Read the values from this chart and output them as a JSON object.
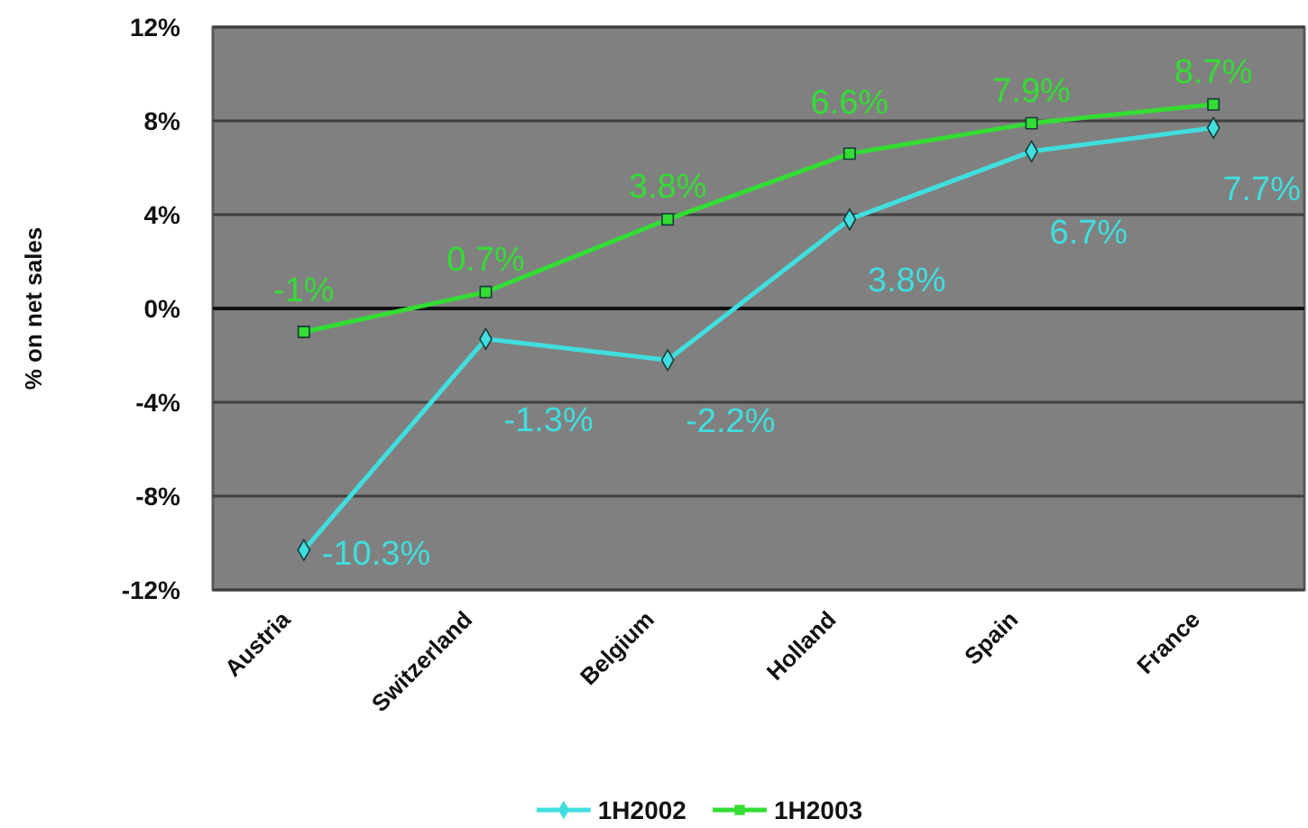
{
  "chart_data": {
    "type": "line",
    "ylabel": "% on net sales",
    "categories": [
      "Austria",
      "Switzerland",
      "Belgium",
      "Holland",
      "Spain",
      "France"
    ],
    "series": [
      {
        "name": "1H2002",
        "color": "#40dede",
        "marker": "diamond",
        "values": [
          -10.3,
          -1.3,
          -2.2,
          3.8,
          6.7,
          7.7
        ],
        "value_labels": [
          "-10.3%",
          "-1.3%",
          "-2.2%",
          "3.8%",
          "6.7%",
          "7.7%"
        ]
      },
      {
        "name": "1H2003",
        "color": "#33dd33",
        "marker": "square",
        "values": [
          -1,
          0.7,
          3.8,
          6.6,
          7.9,
          8.7
        ],
        "value_labels": [
          "-1%",
          "0.7%",
          "3.8%",
          "6.6%",
          "7.9%",
          "8.7%"
        ]
      }
    ],
    "ylim": [
      -12,
      12
    ],
    "yticks": [
      {
        "value": -12,
        "label": "-12%"
      },
      {
        "value": -8,
        "label": "-8%"
      },
      {
        "value": -4,
        "label": "-4%"
      },
      {
        "value": 0,
        "label": "0%"
      },
      {
        "value": 4,
        "label": "4%"
      },
      {
        "value": 8,
        "label": "8%"
      },
      {
        "value": 12,
        "label": "12%"
      }
    ],
    "grid": "y",
    "legend": "bottom",
    "line_style": "solid"
  }
}
